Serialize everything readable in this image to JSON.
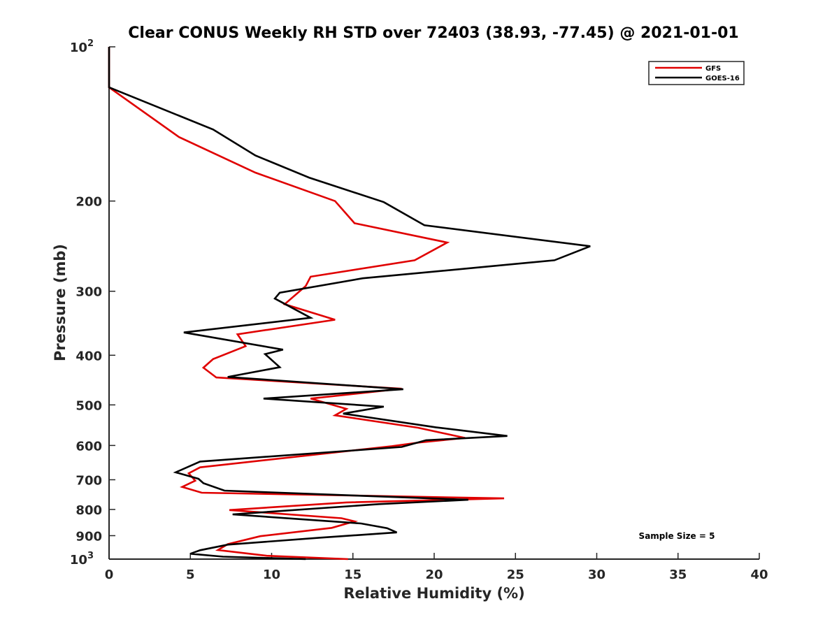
{
  "chart_data": {
    "type": "line",
    "title": "Clear CONUS Weekly RH STD over 72403 (38.93, -77.45) @ 2021-01-01",
    "xlabel": "Relative Humidity (%)",
    "ylabel": "Pressure (mb)",
    "xlim": [
      0,
      40
    ],
    "ylim": [
      100,
      1000
    ],
    "yscale": "log",
    "y_reversed": true,
    "xticks": [
      "0",
      "5",
      "10",
      "15",
      "20",
      "25",
      "30",
      "35",
      "40"
    ],
    "yticks": [
      {
        "value": 100,
        "label": "10",
        "sup": "2"
      },
      {
        "value": 200,
        "label": "200",
        "sup": ""
      },
      {
        "value": 300,
        "label": "300",
        "sup": ""
      },
      {
        "value": 400,
        "label": "400",
        "sup": ""
      },
      {
        "value": 500,
        "label": "500",
        "sup": ""
      },
      {
        "value": 600,
        "label": "600",
        "sup": ""
      },
      {
        "value": 700,
        "label": "700",
        "sup": ""
      },
      {
        "value": 800,
        "label": "800",
        "sup": ""
      },
      {
        "value": 900,
        "label": "900",
        "sup": ""
      },
      {
        "value": 1000,
        "label": "10",
        "sup": "3"
      }
    ],
    "grid": false,
    "legend_position": "top-right",
    "annotation": "Sample Size = 5",
    "series": [
      {
        "name": "GFS",
        "color": "#e00000",
        "points": [
          [
            0,
            100
          ],
          [
            0,
            120
          ],
          [
            4.3,
            150
          ],
          [
            9.0,
            176
          ],
          [
            13.9,
            200
          ],
          [
            15.1,
            221
          ],
          [
            20.8,
            241
          ],
          [
            18.8,
            261
          ],
          [
            12.4,
            281
          ],
          [
            12.1,
            293
          ],
          [
            10.8,
            318
          ],
          [
            13.9,
            341
          ],
          [
            7.9,
            364
          ],
          [
            8.4,
            384
          ],
          [
            6.4,
            407
          ],
          [
            5.8,
            423
          ],
          [
            6.6,
            442
          ],
          [
            18.0,
            465
          ],
          [
            12.4,
            486
          ],
          [
            14.6,
            509
          ],
          [
            13.9,
            524
          ],
          [
            19.0,
            554
          ],
          [
            21.9,
            580
          ],
          [
            19.1,
            592
          ],
          [
            17.4,
            602
          ],
          [
            5.6,
            662
          ],
          [
            4.9,
            680
          ],
          [
            5.3,
            703
          ],
          [
            4.5,
            723
          ],
          [
            5.7,
            742
          ],
          [
            24.3,
            761
          ],
          [
            14.6,
            775
          ],
          [
            7.4,
            802
          ],
          [
            14.3,
            832
          ],
          [
            15.1,
            844
          ],
          [
            13.7,
            869
          ],
          [
            9.3,
            902
          ],
          [
            7.3,
            935
          ],
          [
            6.7,
            960
          ],
          [
            9.7,
            985
          ],
          [
            14.7,
            1000
          ]
        ]
      },
      {
        "name": "GOES-16",
        "color": "#000000",
        "points": [
          [
            0,
            100
          ],
          [
            0,
            120
          ],
          [
            6.4,
            145
          ],
          [
            9.0,
            163
          ],
          [
            12.3,
            180
          ],
          [
            16.9,
            201
          ],
          [
            19.4,
            223
          ],
          [
            29.6,
            245
          ],
          [
            27.4,
            261
          ],
          [
            15.6,
            283
          ],
          [
            10.5,
            302
          ],
          [
            10.2,
            310
          ],
          [
            12.4,
            338
          ],
          [
            4.6,
            361
          ],
          [
            10.7,
            390
          ],
          [
            9.6,
            398
          ],
          [
            10.5,
            422
          ],
          [
            7.3,
            441
          ],
          [
            18.1,
            466
          ],
          [
            9.5,
            486
          ],
          [
            16.9,
            504
          ],
          [
            14.4,
            520
          ],
          [
            20.1,
            553
          ],
          [
            24.5,
            575
          ],
          [
            19.5,
            586
          ],
          [
            18.0,
            604
          ],
          [
            5.6,
            645
          ],
          [
            4.1,
            677
          ],
          [
            5.5,
            697
          ],
          [
            5.8,
            711
          ],
          [
            7.1,
            735
          ],
          [
            22.1,
            766
          ],
          [
            16.6,
            781
          ],
          [
            7.6,
            818
          ],
          [
            15.5,
            852
          ],
          [
            17.1,
            870
          ],
          [
            17.7,
            887
          ],
          [
            13.0,
            908
          ],
          [
            7.3,
            937
          ],
          [
            5.6,
            961
          ],
          [
            5.0,
            976
          ],
          [
            7.0,
            989
          ],
          [
            12.1,
            1000
          ]
        ]
      }
    ]
  }
}
